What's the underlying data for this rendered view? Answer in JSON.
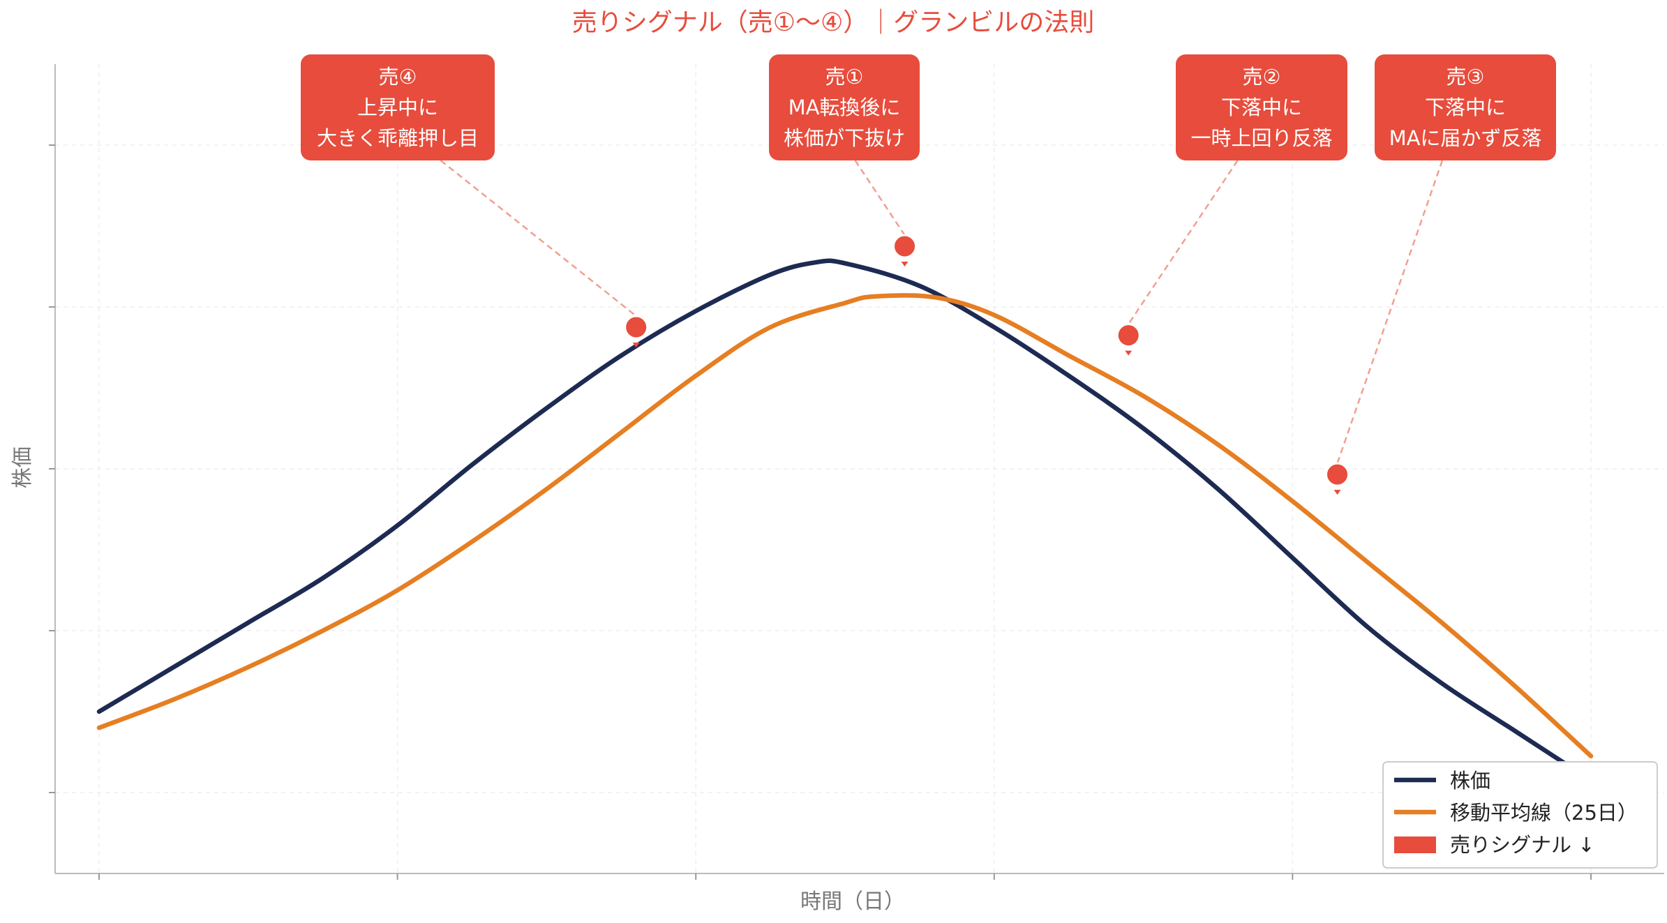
{
  "chart_data": {
    "type": "line",
    "title": "売りシグナル（売①〜④）｜グランビルの法則",
    "xlabel": "時間（日）",
    "ylabel": "株価",
    "xlim": [
      0,
      100
    ],
    "ylim": [
      0,
      100
    ],
    "grid": true,
    "legend_position": "bottom-right",
    "series": [
      {
        "name": "株価",
        "color": "#1d2b53",
        "points": [
          [
            0,
            20
          ],
          [
            5,
            25.5
          ],
          [
            10,
            31
          ],
          [
            15,
            36.5
          ],
          [
            20,
            43
          ],
          [
            25,
            50.5
          ],
          [
            30,
            57.5
          ],
          [
            35,
            64
          ],
          [
            40,
            69.5
          ],
          [
            45,
            74
          ],
          [
            48,
            75.5
          ],
          [
            50,
            75.4
          ],
          [
            55,
            72.6
          ],
          [
            60,
            67.5
          ],
          [
            65,
            61.5
          ],
          [
            70,
            55
          ],
          [
            75,
            47.5
          ],
          [
            80,
            39
          ],
          [
            85,
            30.5
          ],
          [
            90,
            23.5
          ],
          [
            95,
            17.5
          ],
          [
            100,
            11.5
          ]
        ]
      },
      {
        "name": "移動平均線（25日）",
        "color": "#e67e22",
        "points": [
          [
            0,
            18
          ],
          [
            5,
            21.5
          ],
          [
            10,
            25.5
          ],
          [
            15,
            30
          ],
          [
            20,
            35
          ],
          [
            25,
            41
          ],
          [
            30,
            47.5
          ],
          [
            35,
            54.5
          ],
          [
            40,
            61.5
          ],
          [
            45,
            67.5
          ],
          [
            50,
            70.5
          ],
          [
            52,
            71.3
          ],
          [
            56,
            71.2
          ],
          [
            60,
            69
          ],
          [
            65,
            64
          ],
          [
            70,
            59
          ],
          [
            75,
            53
          ],
          [
            80,
            46
          ],
          [
            85,
            38.5
          ],
          [
            90,
            31
          ],
          [
            95,
            23
          ],
          [
            100,
            14.5
          ]
        ]
      }
    ],
    "signals": {
      "name": "売りシグナル ↓",
      "color": "#e74c3c",
      "markers": [
        {
          "x": 36,
          "y": 67.5
        },
        {
          "x": 54,
          "y": 77.5
        },
        {
          "x": 69,
          "y": 66.5
        },
        {
          "x": 83,
          "y": 49.3
        }
      ]
    },
    "annotations": [
      {
        "lines": [
          "売④",
          "上昇中に",
          "大きく乖離押し目"
        ],
        "target": 0
      },
      {
        "lines": [
          "売①",
          "MA転換後に",
          "株価が下抜け"
        ],
        "target": 1
      },
      {
        "lines": [
          "売②",
          "下落中に",
          "一時上回り反落"
        ],
        "target": 2
      },
      {
        "lines": [
          "売③",
          "下落中に",
          "MAに届かず反落"
        ],
        "target": 3
      }
    ]
  }
}
